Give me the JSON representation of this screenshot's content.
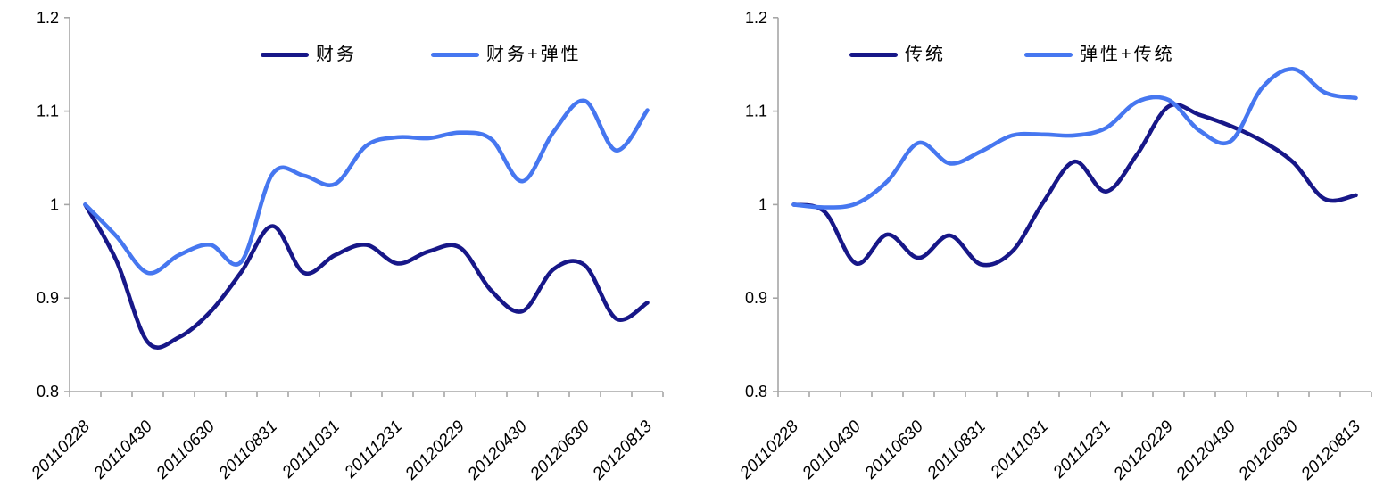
{
  "page": {
    "background": "#ffffff"
  },
  "styles": {
    "axis_color": "#A6A6A6",
    "tick_label_color": "#000000",
    "legend_text_color": "#000000",
    "series_dark_blue": "#171788",
    "series_light_blue": "#4677F0"
  },
  "chart_data": [
    {
      "type": "line",
      "title": "",
      "xlabel": "",
      "ylabel": "",
      "line_style": "smooth",
      "grid": false,
      "legend_position": "top-center-inside",
      "ylim": [
        0.8,
        1.2
      ],
      "y_ticks": [
        "0.8",
        "0.9",
        "1",
        "1.1",
        "1.2"
      ],
      "x_labels": [
        "20110228",
        "20110430",
        "20110630",
        "20110831",
        "20111031",
        "20111231",
        "20120229",
        "20120430",
        "20120630",
        "20120813"
      ],
      "x_points_count": 19,
      "x_label_every_n_points": 2,
      "series": [
        {
          "name": "财务",
          "color": "#171788",
          "values": [
            1.0,
            0.94,
            0.853,
            0.858,
            0.885,
            0.928,
            0.977,
            0.927,
            0.946,
            0.957,
            0.937,
            0.95,
            0.954,
            0.908,
            0.886,
            0.931,
            0.935,
            0.878,
            0.895
          ]
        },
        {
          "name": "财务+弹性",
          "color": "#4677F0",
          "values": [
            1.0,
            0.966,
            0.927,
            0.946,
            0.957,
            0.939,
            1.033,
            1.031,
            1.022,
            1.063,
            1.072,
            1.071,
            1.077,
            1.07,
            1.025,
            1.078,
            1.111,
            1.058,
            1.101
          ]
        }
      ]
    },
    {
      "type": "line",
      "title": "",
      "xlabel": "",
      "ylabel": "",
      "line_style": "smooth",
      "grid": false,
      "legend_position": "top-center-inside",
      "ylim": [
        0.8,
        1.2
      ],
      "y_ticks": [
        "0.8",
        "0.9",
        "1",
        "1.1",
        "1.2"
      ],
      "x_labels": [
        "20110228",
        "20110430",
        "20110630",
        "20110831",
        "20111031",
        "20111231",
        "20120229",
        "20120430",
        "20120630",
        "20120813"
      ],
      "x_points_count": 19,
      "x_label_every_n_points": 2,
      "series": [
        {
          "name": "传统",
          "color": "#171788",
          "values": [
            1.0,
            0.992,
            0.937,
            0.968,
            0.943,
            0.967,
            0.936,
            0.95,
            1.003,
            1.046,
            1.014,
            1.054,
            1.105,
            1.096,
            1.084,
            1.068,
            1.045,
            1.006,
            1.01
          ]
        },
        {
          "name": "弹性+传统",
          "color": "#4677F0",
          "values": [
            1.0,
            0.997,
            1.001,
            1.025,
            1.066,
            1.044,
            1.057,
            1.074,
            1.075,
            1.074,
            1.082,
            1.11,
            1.112,
            1.079,
            1.068,
            1.125,
            1.145,
            1.12,
            1.114
          ]
        }
      ]
    }
  ]
}
